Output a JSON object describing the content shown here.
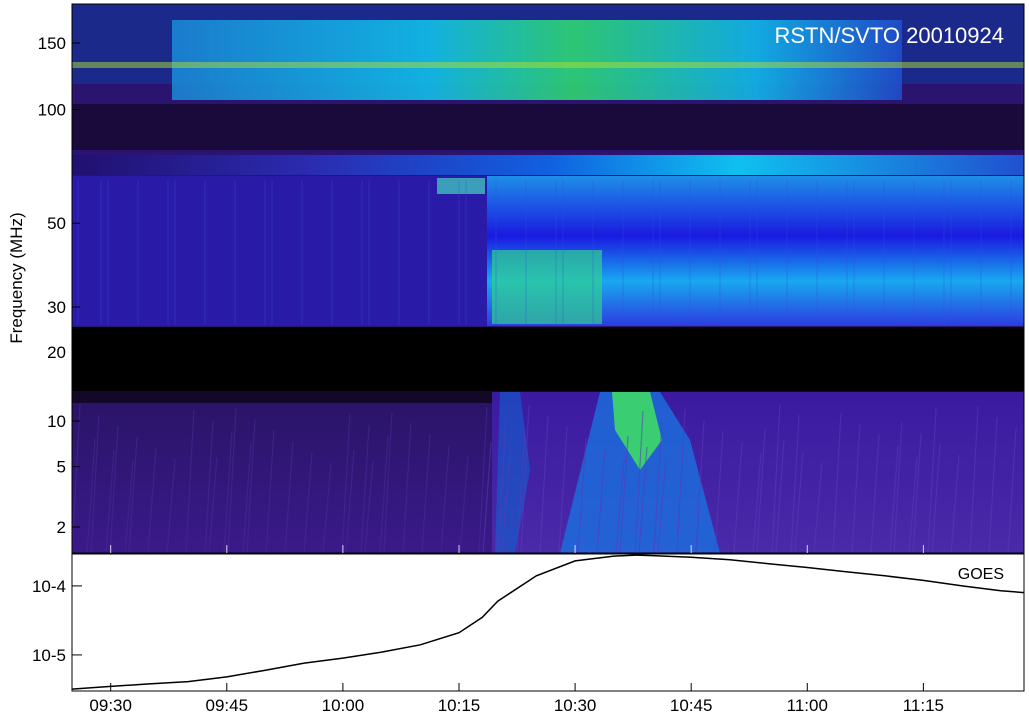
{
  "chart_data": [
    {
      "type": "heatmap",
      "title": "RSTN/SVTO 20010924",
      "ylabel": "Frequency (MHz)",
      "y_scale": "log",
      "y_ticks": [
        2,
        5,
        10,
        20,
        30,
        50,
        100,
        150
      ],
      "y_tick_labels": [
        "2",
        "5",
        "10",
        "20",
        "30",
        "50",
        "100",
        "150"
      ],
      "ylim": [
        1.5,
        180
      ],
      "x_ticks": [
        "09:30",
        "09:45",
        "10:00",
        "10:15",
        "10:30",
        "10:45",
        "11:00",
        "11:15"
      ],
      "xlim": [
        "09:25",
        "11:28"
      ],
      "no_data_band_mhz": [
        13.5,
        24
      ],
      "colors": {
        "low": "#2a1070",
        "mid": "#2030e0",
        "high": "#10c0f0",
        "peak": "#40e040",
        "max": "#d0f020",
        "gap": "#000000"
      },
      "features": [
        {
          "kind": "type-II/IV onset",
          "time": "10:18"
        },
        {
          "kind": "low-frequency burst",
          "time": "10:31"
        }
      ]
    },
    {
      "type": "line",
      "legend": "GOES",
      "legend_position": "top-right",
      "y_scale": "log",
      "y_tick_labels": [
        "10^-5",
        "10^-4"
      ],
      "ylim": [
        3e-06,
        0.00029
      ],
      "x_ticks": [
        "09:30",
        "09:45",
        "10:00",
        "10:15",
        "10:30",
        "10:45",
        "11:00",
        "11:15"
      ],
      "xlim": [
        "09:25",
        "11:28"
      ],
      "series": [
        {
          "x": [
            "09:25",
            "09:30",
            "09:35",
            "09:40",
            "09:45",
            "09:50",
            "09:55",
            "10:00",
            "10:05",
            "10:10",
            "10:15",
            "10:18",
            "10:20",
            "10:25",
            "10:30",
            "10:35",
            "10:38",
            "10:40",
            "10:45",
            "10:50",
            "10:55",
            "11:00",
            "11:05",
            "11:10",
            "11:15",
            "11:20",
            "11:25",
            "11:28"
          ],
          "y": [
            3.2e-06,
            3.5e-06,
            3.8e-06,
            4.1e-06,
            4.8e-06,
            6e-06,
            7.6e-06,
            9e-06,
            1.1e-05,
            1.4e-05,
            2.1e-05,
            3.5e-05,
            6e-05,
            0.00014,
            0.00023,
            0.00027,
            0.00028,
            0.000275,
            0.00026,
            0.00024,
            0.00021,
            0.000185,
            0.00016,
            0.00014,
            0.00012,
            0.0001,
            8.5e-05,
            8e-05
          ]
        }
      ]
    }
  ]
}
